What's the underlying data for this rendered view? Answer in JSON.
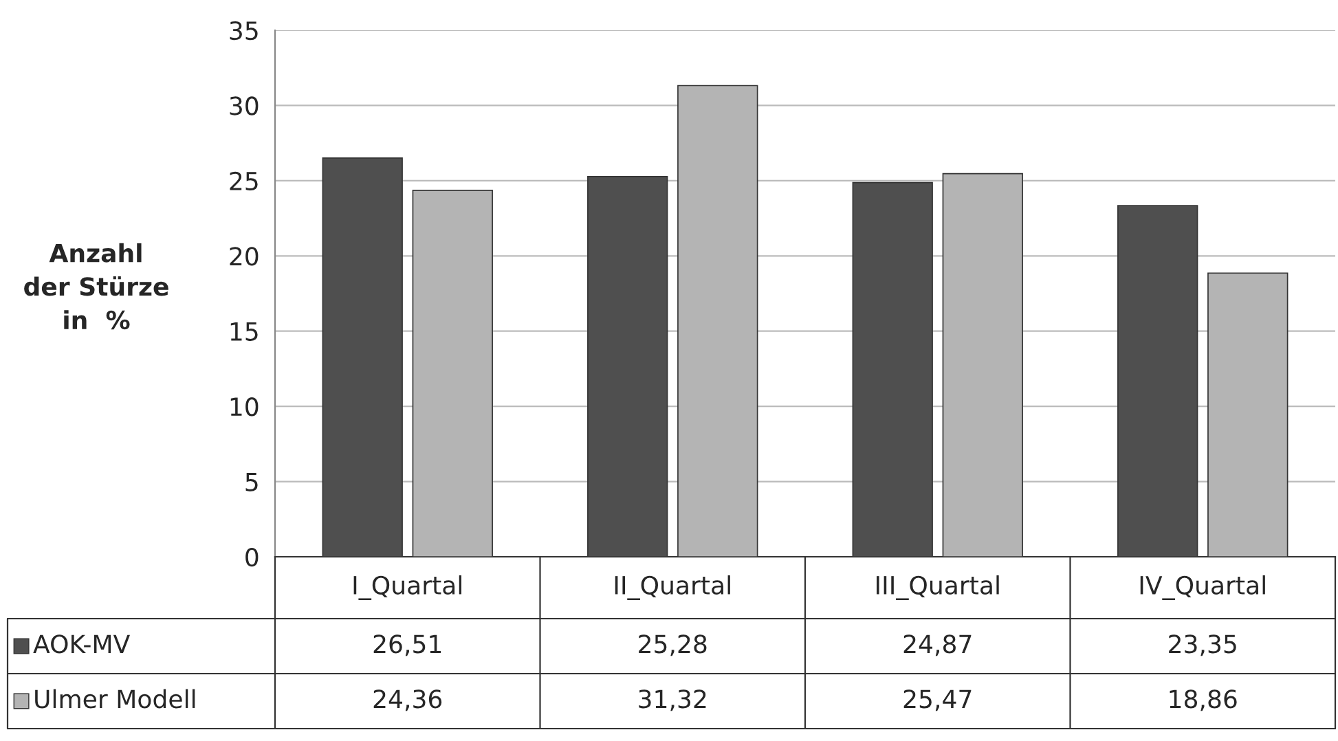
{
  "chart_data": {
    "type": "bar",
    "ylabel": "Anzahl\nder Stürze\nin  %",
    "categories": [
      "I_Quartal",
      "II_Quartal",
      "III_Quartal",
      "IV_Quartal"
    ],
    "series": [
      {
        "name": "AOK-MV",
        "color": "#4f4f4f",
        "values": [
          26.51,
          25.28,
          24.87,
          23.35
        ],
        "value_labels": [
          "26,51",
          "25,28",
          "24,87",
          "23,35"
        ]
      },
      {
        "name": "Ulmer Modell",
        "color": "#b4b4b4",
        "values": [
          24.36,
          31.32,
          25.47,
          18.86
        ],
        "value_labels": [
          "24,36",
          "31,32",
          "25,47",
          "18,86"
        ]
      }
    ],
    "ylim": [
      0,
      35
    ],
    "yticks": [
      0,
      5,
      10,
      15,
      20,
      25,
      30,
      35
    ],
    "grid": "y",
    "legend": "bottom left"
  }
}
